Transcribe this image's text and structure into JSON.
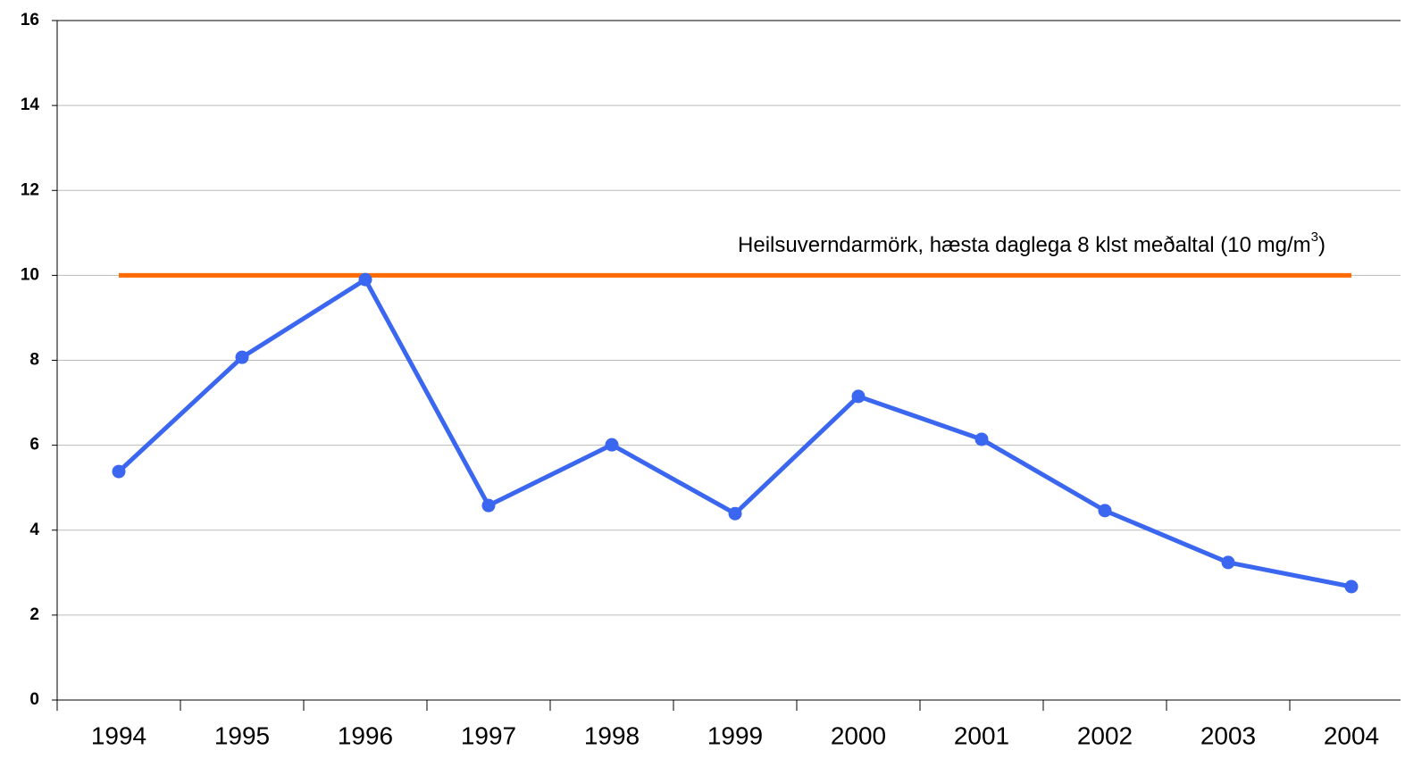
{
  "chart_data": {
    "type": "line",
    "categories": [
      "1994",
      "1995",
      "1996",
      "1997",
      "1998",
      "1999",
      "2000",
      "2001",
      "2002",
      "2003",
      "2004"
    ],
    "series": [
      {
        "color": "#3a66f0",
        "values": [
          5.38,
          8.07,
          9.9,
          4.58,
          6.01,
          4.39,
          7.15,
          6.14,
          4.46,
          3.24,
          2.67
        ]
      }
    ],
    "threshold": {
      "value": 10,
      "color": "#ff6a00",
      "label": [
        "Heilsuverndarmörk, hæsta daglega 8 klst meðaltal (10 mg/m",
        "3",
        ")"
      ]
    },
    "ylim": [
      0,
      16
    ],
    "yticks": [
      0,
      2,
      4,
      6,
      8,
      10,
      12,
      14,
      16
    ],
    "grid": true
  }
}
